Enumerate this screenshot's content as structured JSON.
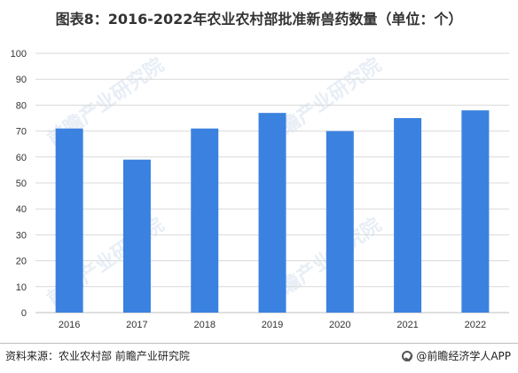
{
  "chart_data": {
    "type": "bar",
    "title": "图表8：2016-2022年农业农村部批准新兽药数量（单位：个）",
    "categories": [
      "2016",
      "2017",
      "2018",
      "2019",
      "2020",
      "2021",
      "2022"
    ],
    "values": [
      71,
      59,
      71,
      77,
      70,
      75,
      78
    ],
    "yticks": [
      "0",
      "10",
      "20",
      "30",
      "40",
      "50",
      "60",
      "70",
      "80",
      "90",
      "100"
    ],
    "ylim": [
      0,
      100
    ],
    "grid": true,
    "bar_color": "#3b82e0"
  },
  "source": "资料来源：农业农村部 前瞻产业研究院",
  "brand": "@前瞻经济学人APP",
  "watermark": "前瞻产业研究院"
}
